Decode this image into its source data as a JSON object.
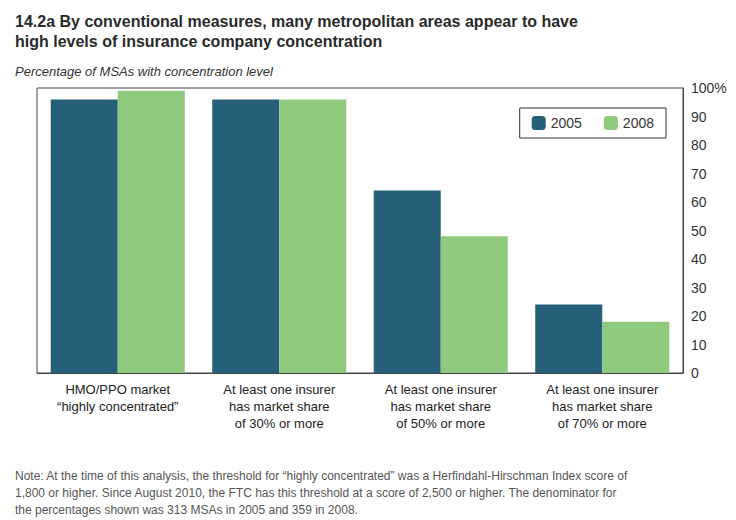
{
  "chart_data": {
    "type": "bar",
    "title": "14.2a By conventional measures, many metropolitan areas appear to have\nhigh levels of insurance company concentration",
    "subtitle": "Percentage of MSAs with concentration level",
    "annotations": [
      "Note: At the time of this analysis, the threshold for “highly concentrated” was a Herfindahl-Hirschman Index score of\n1,800 or higher. Since August 2010, the FTC has this threshold at a score of 2,500 or higher. The denominator for\nthe percentages shown was 313 MSAs in 2005 and 359 in 2008."
    ],
    "categories": [
      "HMO/PPO market\n“highly concentrated”",
      "At least one insurer\nhas market share\nof 30% or more",
      "At least one insurer\nhas market share\nof 50% or more",
      "At least one insurer\nhas market share\nof 70% or more"
    ],
    "series": [
      {
        "name": "2005",
        "color": "#265f78",
        "values": [
          96,
          96,
          64,
          24
        ]
      },
      {
        "name": "2008",
        "color": "#8fc97e",
        "values": [
          99,
          96,
          48,
          18
        ]
      }
    ],
    "ylim": [
      0,
      100
    ],
    "yticks": [
      0,
      10,
      20,
      30,
      40,
      50,
      60,
      70,
      80,
      90,
      {
        "value": 100,
        "label": "100%"
      }
    ],
    "grid": false,
    "legend": "top-right"
  }
}
